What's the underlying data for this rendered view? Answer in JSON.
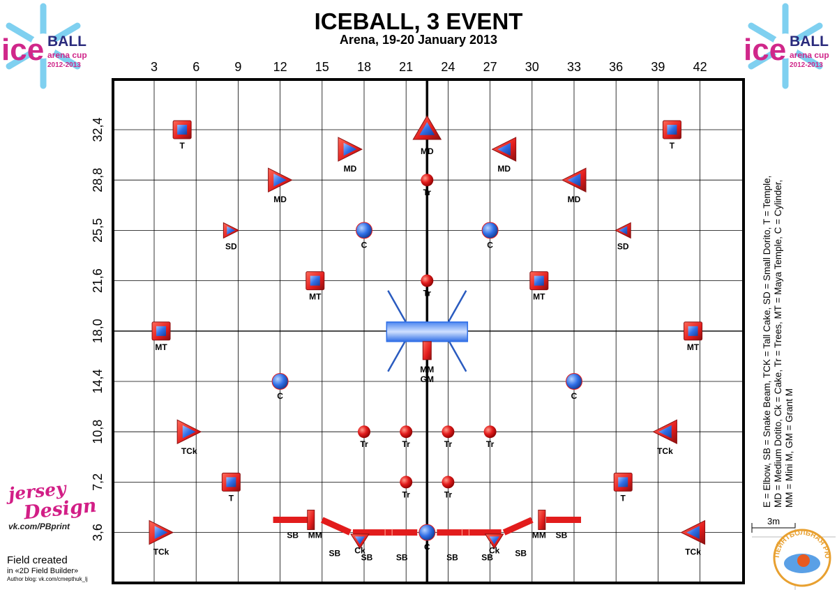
{
  "title": "ICEBALL, 3 EVENT",
  "subtitle": "Arena, 19-20 January 2013",
  "logo": {
    "word1": "ice",
    "word2": "BALL",
    "line2": "arena cup",
    "line3": "2012-2013"
  },
  "x_ticks": [
    "3",
    "6",
    "9",
    "12",
    "15",
    "18",
    "21",
    "24",
    "27",
    "30",
    "33",
    "36",
    "39",
    "42"
  ],
  "y_ticks": [
    "32,4",
    "28,8",
    "25,5",
    "21,6",
    "18,0",
    "14,4",
    "10,8",
    "7,2",
    "3,6"
  ],
  "legend_lines": [
    "E = Elbow, SB = Snake Beam, TCK = Tall Cake, SD = Small Dorito, T = Temple,",
    "MD = Medium Dotito, Ck = Cake, Tr = Trees, MT = Maya Temple, C = Cylinder,",
    "MM = Mini M, GM = Grant M"
  ],
  "branding": {
    "jersey1": "jersey",
    "jersey2": "Design",
    "vk": "vk.com/PBprint",
    "field_created": "Field created",
    "builder": "in «2D Field Builder»",
    "author": "Author blog: vk.com/cmepthuk_lj"
  },
  "scale": {
    "label": "3m",
    "stamp_text": "ПЕЙНТБОЛЬНАЯ РЮШКА"
  },
  "colors": {
    "red": "#e21c1c",
    "blue": "#2f6ee6",
    "dark_red": "#8a1010",
    "line": "#000000"
  },
  "field": {
    "center_x": 22.5,
    "bunkers": [
      {
        "type": "square",
        "label": "T",
        "x": 5,
        "y": 32.4
      },
      {
        "type": "square",
        "label": "T",
        "x": 40,
        "y": 32.4
      },
      {
        "type": "tri-up",
        "label": "MD",
        "x": 22.5,
        "y": 32.4
      },
      {
        "type": "tri-right",
        "label": "MD",
        "x": 17,
        "y": 31
      },
      {
        "type": "tri-left",
        "label": "MD",
        "x": 28,
        "y": 31
      },
      {
        "type": "tri-right",
        "label": "MD",
        "x": 12,
        "y": 28.8
      },
      {
        "type": "tri-left",
        "label": "MD",
        "x": 33,
        "y": 28.8
      },
      {
        "type": "circle-red",
        "label": "Tr",
        "x": 22.5,
        "y": 28.8
      },
      {
        "type": "tri-right-small",
        "label": "SD",
        "x": 8.5,
        "y": 25.5
      },
      {
        "type": "tri-left-small",
        "label": "SD",
        "x": 36.5,
        "y": 25.5
      },
      {
        "type": "circle-blue",
        "label": "C",
        "x": 18,
        "y": 25.5
      },
      {
        "type": "circle-blue",
        "label": "C",
        "x": 27,
        "y": 25.5
      },
      {
        "type": "square",
        "label": "MT",
        "x": 14.5,
        "y": 21.6
      },
      {
        "type": "square",
        "label": "MT",
        "x": 30.5,
        "y": 21.6
      },
      {
        "type": "circle-red",
        "label": "Tr",
        "x": 22.5,
        "y": 21.6
      },
      {
        "type": "square",
        "label": "MT",
        "x": 3.5,
        "y": 18
      },
      {
        "type": "square",
        "label": "MT",
        "x": 41.5,
        "y": 18
      },
      {
        "type": "circle-blue",
        "label": "C",
        "x": 12,
        "y": 14.4
      },
      {
        "type": "circle-blue",
        "label": "C",
        "x": 33,
        "y": 14.4
      },
      {
        "type": "tri-right",
        "label": "TCk",
        "x": 5.5,
        "y": 10.8
      },
      {
        "type": "tri-left",
        "label": "TCk",
        "x": 39.5,
        "y": 10.8
      },
      {
        "type": "circle-red",
        "label": "Tr",
        "x": 18,
        "y": 10.8
      },
      {
        "type": "circle-red",
        "label": "Tr",
        "x": 21,
        "y": 10.8
      },
      {
        "type": "circle-red",
        "label": "Tr",
        "x": 24,
        "y": 10.8
      },
      {
        "type": "circle-red",
        "label": "Tr",
        "x": 27,
        "y": 10.8
      },
      {
        "type": "square",
        "label": "T",
        "x": 8.5,
        "y": 7.2
      },
      {
        "type": "square",
        "label": "T",
        "x": 36.5,
        "y": 7.2
      },
      {
        "type": "circle-red",
        "label": "Tr",
        "x": 21,
        "y": 7.2
      },
      {
        "type": "circle-red",
        "label": "Tr",
        "x": 24,
        "y": 7.2
      },
      {
        "type": "tri-right",
        "label": "TCk",
        "x": 3.5,
        "y": 3.6
      },
      {
        "type": "tri-left",
        "label": "TCk",
        "x": 41.5,
        "y": 3.6
      },
      {
        "type": "tri-down",
        "label": "Ck",
        "x": 17.7,
        "y": 3.1
      },
      {
        "type": "tri-down",
        "label": "Ck",
        "x": 27.3,
        "y": 3.1
      },
      {
        "type": "circle-blue",
        "label": "C",
        "x": 22.5,
        "y": 3.6
      }
    ],
    "center_labels": [
      "MM",
      "GM"
    ],
    "sb_labels": [
      {
        "label": "SB",
        "x": 12.9,
        "y": 3.4
      },
      {
        "label": "MM",
        "x": 14.5,
        "y": 3.4
      },
      {
        "label": "SB",
        "x": 15.9,
        "y": 2.1
      },
      {
        "label": "SB",
        "x": 18.2,
        "y": 1.8
      },
      {
        "label": "SB",
        "x": 20.7,
        "y": 1.8
      },
      {
        "label": "SB",
        "x": 24.3,
        "y": 1.8
      },
      {
        "label": "SB",
        "x": 26.8,
        "y": 1.8
      },
      {
        "label": "SB",
        "x": 29.2,
        "y": 2.1
      },
      {
        "label": "MM",
        "x": 30.5,
        "y": 3.4
      },
      {
        "label": "SB",
        "x": 32.1,
        "y": 3.4
      }
    ]
  }
}
